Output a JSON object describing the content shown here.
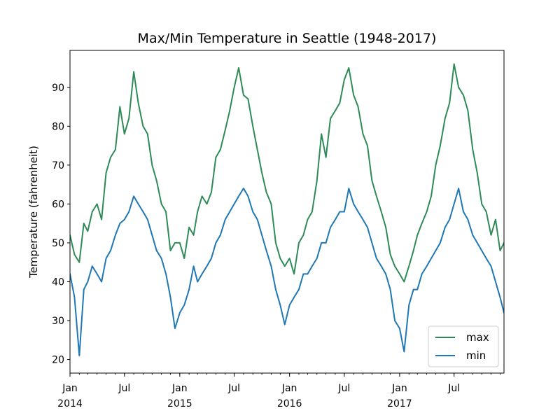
{
  "chart_data": {
    "type": "line",
    "title": "Max/Min Temperature in Seattle (1948-2017)",
    "xlabel": "",
    "ylabel": "Temperature (fahrenheit)",
    "xlim": [
      "2014-01-01",
      "2017-12-14"
    ],
    "ylim": [
      16.5,
      99.5
    ],
    "yticks": [
      20,
      30,
      40,
      50,
      60,
      70,
      80,
      90
    ],
    "xticks_major": [
      {
        "date": "2014-01-01",
        "label": "Jan",
        "year": "2014"
      },
      {
        "date": "2014-07-01",
        "label": "Jul",
        "year": ""
      },
      {
        "date": "2015-01-01",
        "label": "Jan",
        "year": "2015"
      },
      {
        "date": "2015-07-01",
        "label": "Jul",
        "year": ""
      },
      {
        "date": "2016-01-01",
        "label": "Jan",
        "year": "2016"
      },
      {
        "date": "2016-07-01",
        "label": "Jul",
        "year": ""
      },
      {
        "date": "2017-01-01",
        "label": "Jan",
        "year": "2017"
      },
      {
        "date": "2017-07-01",
        "label": "Jul",
        "year": ""
      }
    ],
    "grid": false,
    "legend_position": "bottom-right",
    "x": [
      "2014-01-01",
      "2014-01-16",
      "2014-02-01",
      "2014-02-16",
      "2014-03-01",
      "2014-03-16",
      "2014-04-01",
      "2014-04-16",
      "2014-05-01",
      "2014-05-16",
      "2014-06-01",
      "2014-06-16",
      "2014-07-01",
      "2014-07-16",
      "2014-08-01",
      "2014-08-16",
      "2014-09-01",
      "2014-09-16",
      "2014-10-01",
      "2014-10-16",
      "2014-11-01",
      "2014-11-16",
      "2014-12-01",
      "2014-12-16",
      "2015-01-01",
      "2015-01-16",
      "2015-02-01",
      "2015-02-16",
      "2015-03-01",
      "2015-03-16",
      "2015-04-01",
      "2015-04-16",
      "2015-05-01",
      "2015-05-16",
      "2015-06-01",
      "2015-06-16",
      "2015-07-01",
      "2015-07-16",
      "2015-08-01",
      "2015-08-16",
      "2015-09-01",
      "2015-09-16",
      "2015-10-01",
      "2015-10-16",
      "2015-11-01",
      "2015-11-16",
      "2015-12-01",
      "2015-12-16",
      "2016-01-01",
      "2016-01-16",
      "2016-02-01",
      "2016-02-16",
      "2016-03-01",
      "2016-03-16",
      "2016-04-01",
      "2016-04-16",
      "2016-05-01",
      "2016-05-16",
      "2016-06-01",
      "2016-06-16",
      "2016-07-01",
      "2016-07-16",
      "2016-08-01",
      "2016-08-16",
      "2016-09-01",
      "2016-09-16",
      "2016-10-01",
      "2016-10-16",
      "2016-11-01",
      "2016-11-16",
      "2016-12-01",
      "2016-12-16",
      "2017-01-01",
      "2017-01-16",
      "2017-02-01",
      "2017-02-16",
      "2017-03-01",
      "2017-03-16",
      "2017-04-01",
      "2017-04-16",
      "2017-05-01",
      "2017-05-16",
      "2017-06-01",
      "2017-06-16",
      "2017-07-01",
      "2017-07-16",
      "2017-08-01",
      "2017-08-16",
      "2017-09-01",
      "2017-09-16",
      "2017-10-01",
      "2017-10-16",
      "2017-11-01",
      "2017-11-16",
      "2017-12-01",
      "2017-12-14"
    ],
    "series": [
      {
        "name": "max",
        "color": "#2e8b57",
        "values": [
          52,
          47,
          45,
          55,
          53,
          58,
          60,
          56,
          68,
          72,
          74,
          85,
          78,
          82,
          94,
          86,
          80,
          78,
          70,
          66,
          60,
          58,
          48,
          50,
          50,
          46,
          54,
          52,
          58,
          62,
          60,
          63,
          72,
          74,
          79,
          84,
          90,
          95,
          88,
          87,
          80,
          74,
          68,
          63,
          60,
          50,
          46,
          44,
          46,
          42,
          50,
          52,
          56,
          58,
          66,
          78,
          72,
          82,
          84,
          86,
          92,
          95,
          88,
          85,
          78,
          75,
          66,
          62,
          58,
          54,
          47,
          44,
          42,
          40,
          44,
          48,
          52,
          55,
          58,
          62,
          70,
          75,
          82,
          86,
          96,
          90,
          88,
          84,
          74,
          68,
          60,
          58,
          52,
          56,
          48,
          50
        ]
      },
      {
        "name": "min",
        "color": "#1f77b4",
        "values": [
          42,
          36,
          21,
          38,
          40,
          44,
          42,
          40,
          46,
          48,
          52,
          55,
          56,
          58,
          62,
          60,
          58,
          56,
          52,
          48,
          46,
          42,
          36,
          28,
          32,
          34,
          38,
          44,
          40,
          42,
          44,
          46,
          50,
          52,
          56,
          58,
          60,
          62,
          64,
          62,
          58,
          56,
          52,
          48,
          44,
          38,
          34,
          29,
          34,
          36,
          38,
          42,
          42,
          44,
          46,
          50,
          50,
          54,
          56,
          58,
          58,
          64,
          60,
          58,
          56,
          54,
          50,
          46,
          44,
          42,
          38,
          30,
          28,
          22,
          34,
          38,
          38,
          42,
          44,
          46,
          48,
          50,
          54,
          56,
          60,
          64,
          58,
          56,
          52,
          50,
          48,
          46,
          44,
          40,
          36,
          32
        ]
      }
    ]
  }
}
